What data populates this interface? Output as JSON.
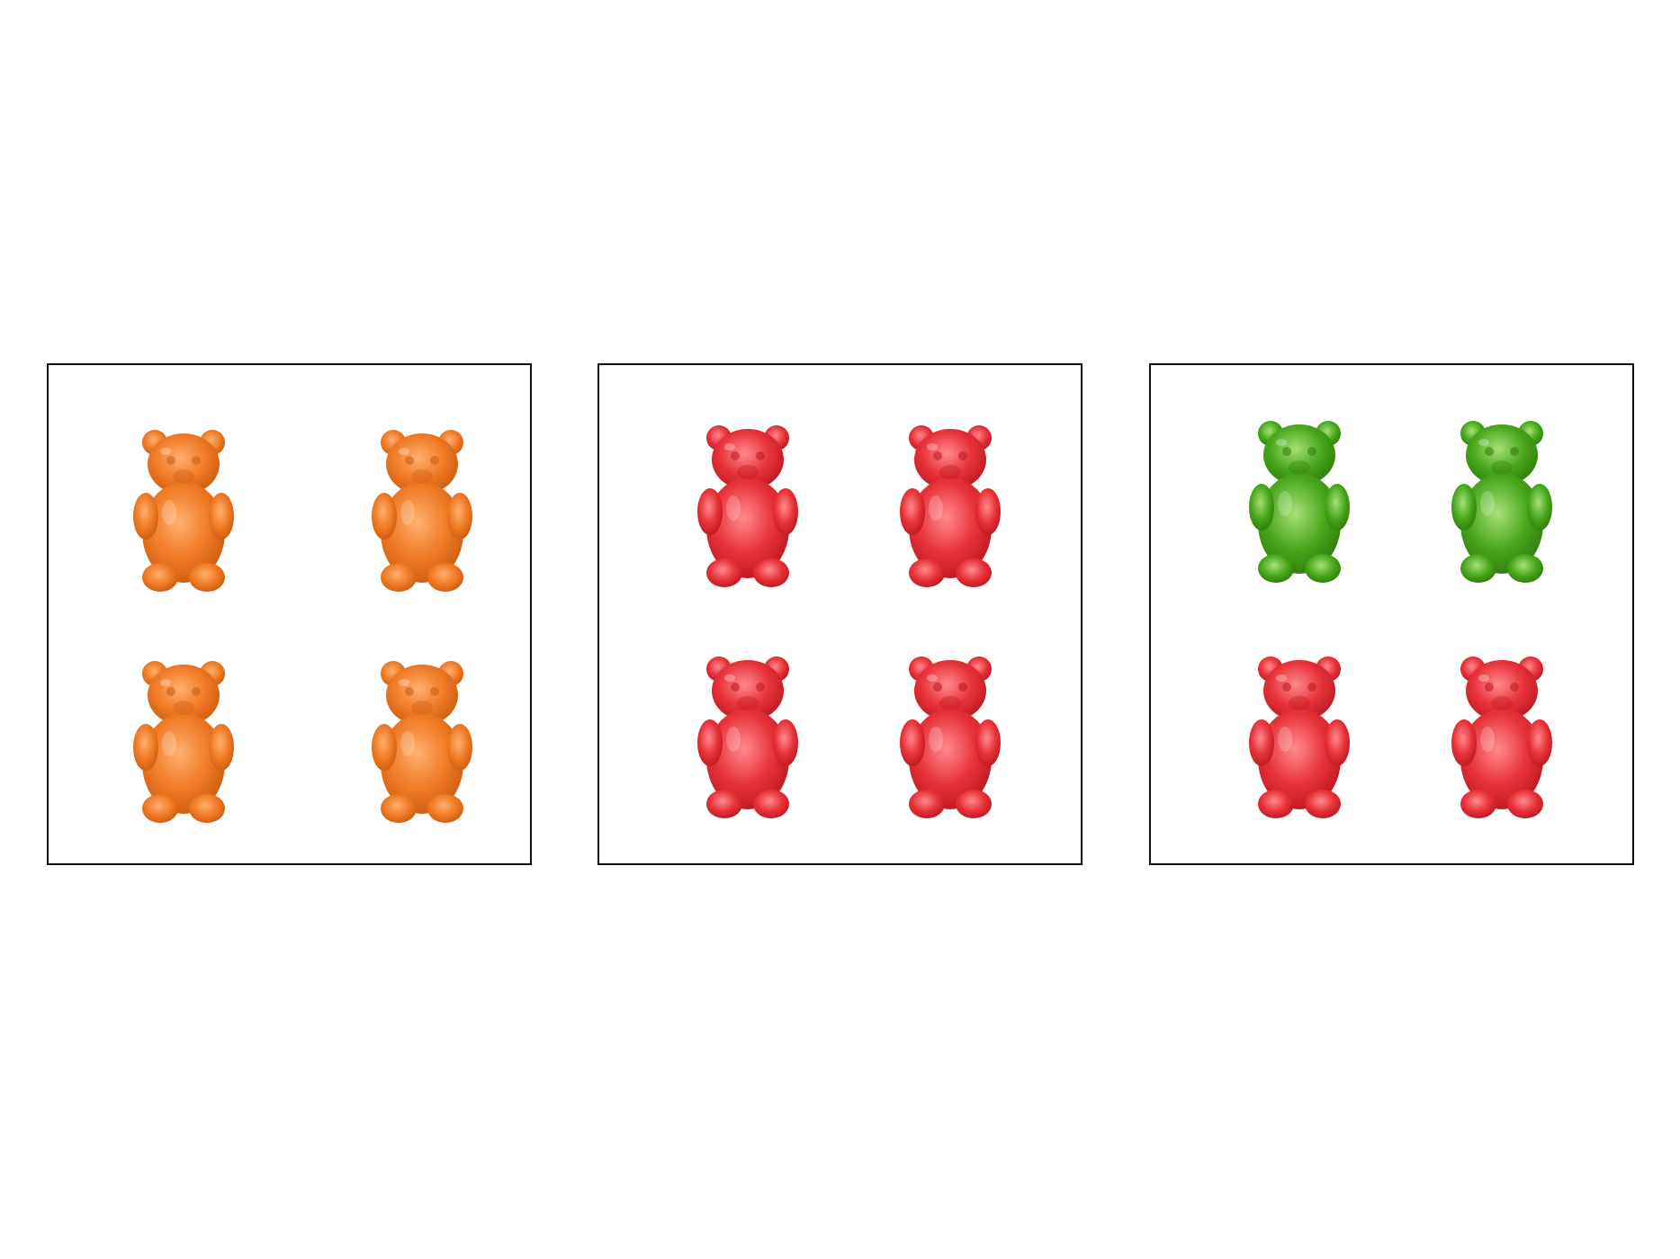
{
  "panels": [
    {
      "name": "panel-1",
      "bears": [
        "orange",
        "orange",
        "orange",
        "orange"
      ]
    },
    {
      "name": "panel-2",
      "bears": [
        "red",
        "red",
        "red",
        "red"
      ]
    },
    {
      "name": "panel-3",
      "bears": [
        "green",
        "green",
        "red",
        "red"
      ]
    }
  ],
  "colors": {
    "orange": {
      "body": "#f07a24",
      "shade": "#c85a10",
      "light": "#ffb070"
    },
    "red": {
      "body": "#e8323a",
      "shade": "#b8161e",
      "light": "#ff8a8e"
    },
    "green": {
      "body": "#4aa81c",
      "shade": "#2c7a0a",
      "light": "#a8e07a"
    },
    "border": "#111111"
  },
  "icons": {
    "bear": "gummy-bear-icon"
  }
}
